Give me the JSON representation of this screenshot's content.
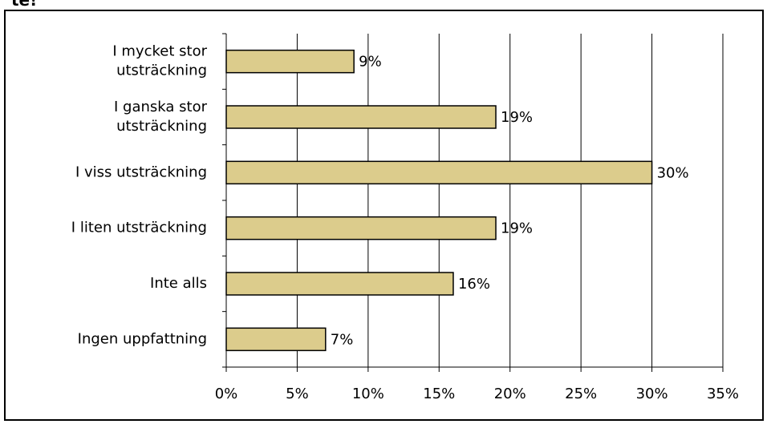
{
  "header": {
    "clipped_title": "te!"
  },
  "chart_data": {
    "type": "bar",
    "orientation": "horizontal",
    "categories": [
      "I mycket stor utsträckning",
      "I ganska stor utsträckning",
      "I viss utsträckning",
      "I liten utsträckning",
      "Inte alls",
      "Ingen uppfattning"
    ],
    "category_label_lines": [
      [
        "I mycket stor",
        "utsträckning"
      ],
      [
        "I ganska stor",
        "utsträckning"
      ],
      [
        "I viss utsträckning"
      ],
      [
        "I liten utsträckning"
      ],
      [
        "Inte alls"
      ],
      [
        "Ingen uppfattning"
      ]
    ],
    "values": [
      9,
      19,
      30,
      19,
      16,
      7
    ],
    "data_labels": [
      "9%",
      "19%",
      "30%",
      "19%",
      "16%",
      "7%"
    ],
    "xticks": [
      "0%",
      "5%",
      "10%",
      "15%",
      "20%",
      "25%",
      "30%",
      "35%"
    ],
    "xlim": [
      0,
      35
    ],
    "grid": "vertical",
    "bar_color": "#dccc8c",
    "bar_edge_color": "#000000",
    "title": "",
    "xlabel": "",
    "ylabel": ""
  }
}
